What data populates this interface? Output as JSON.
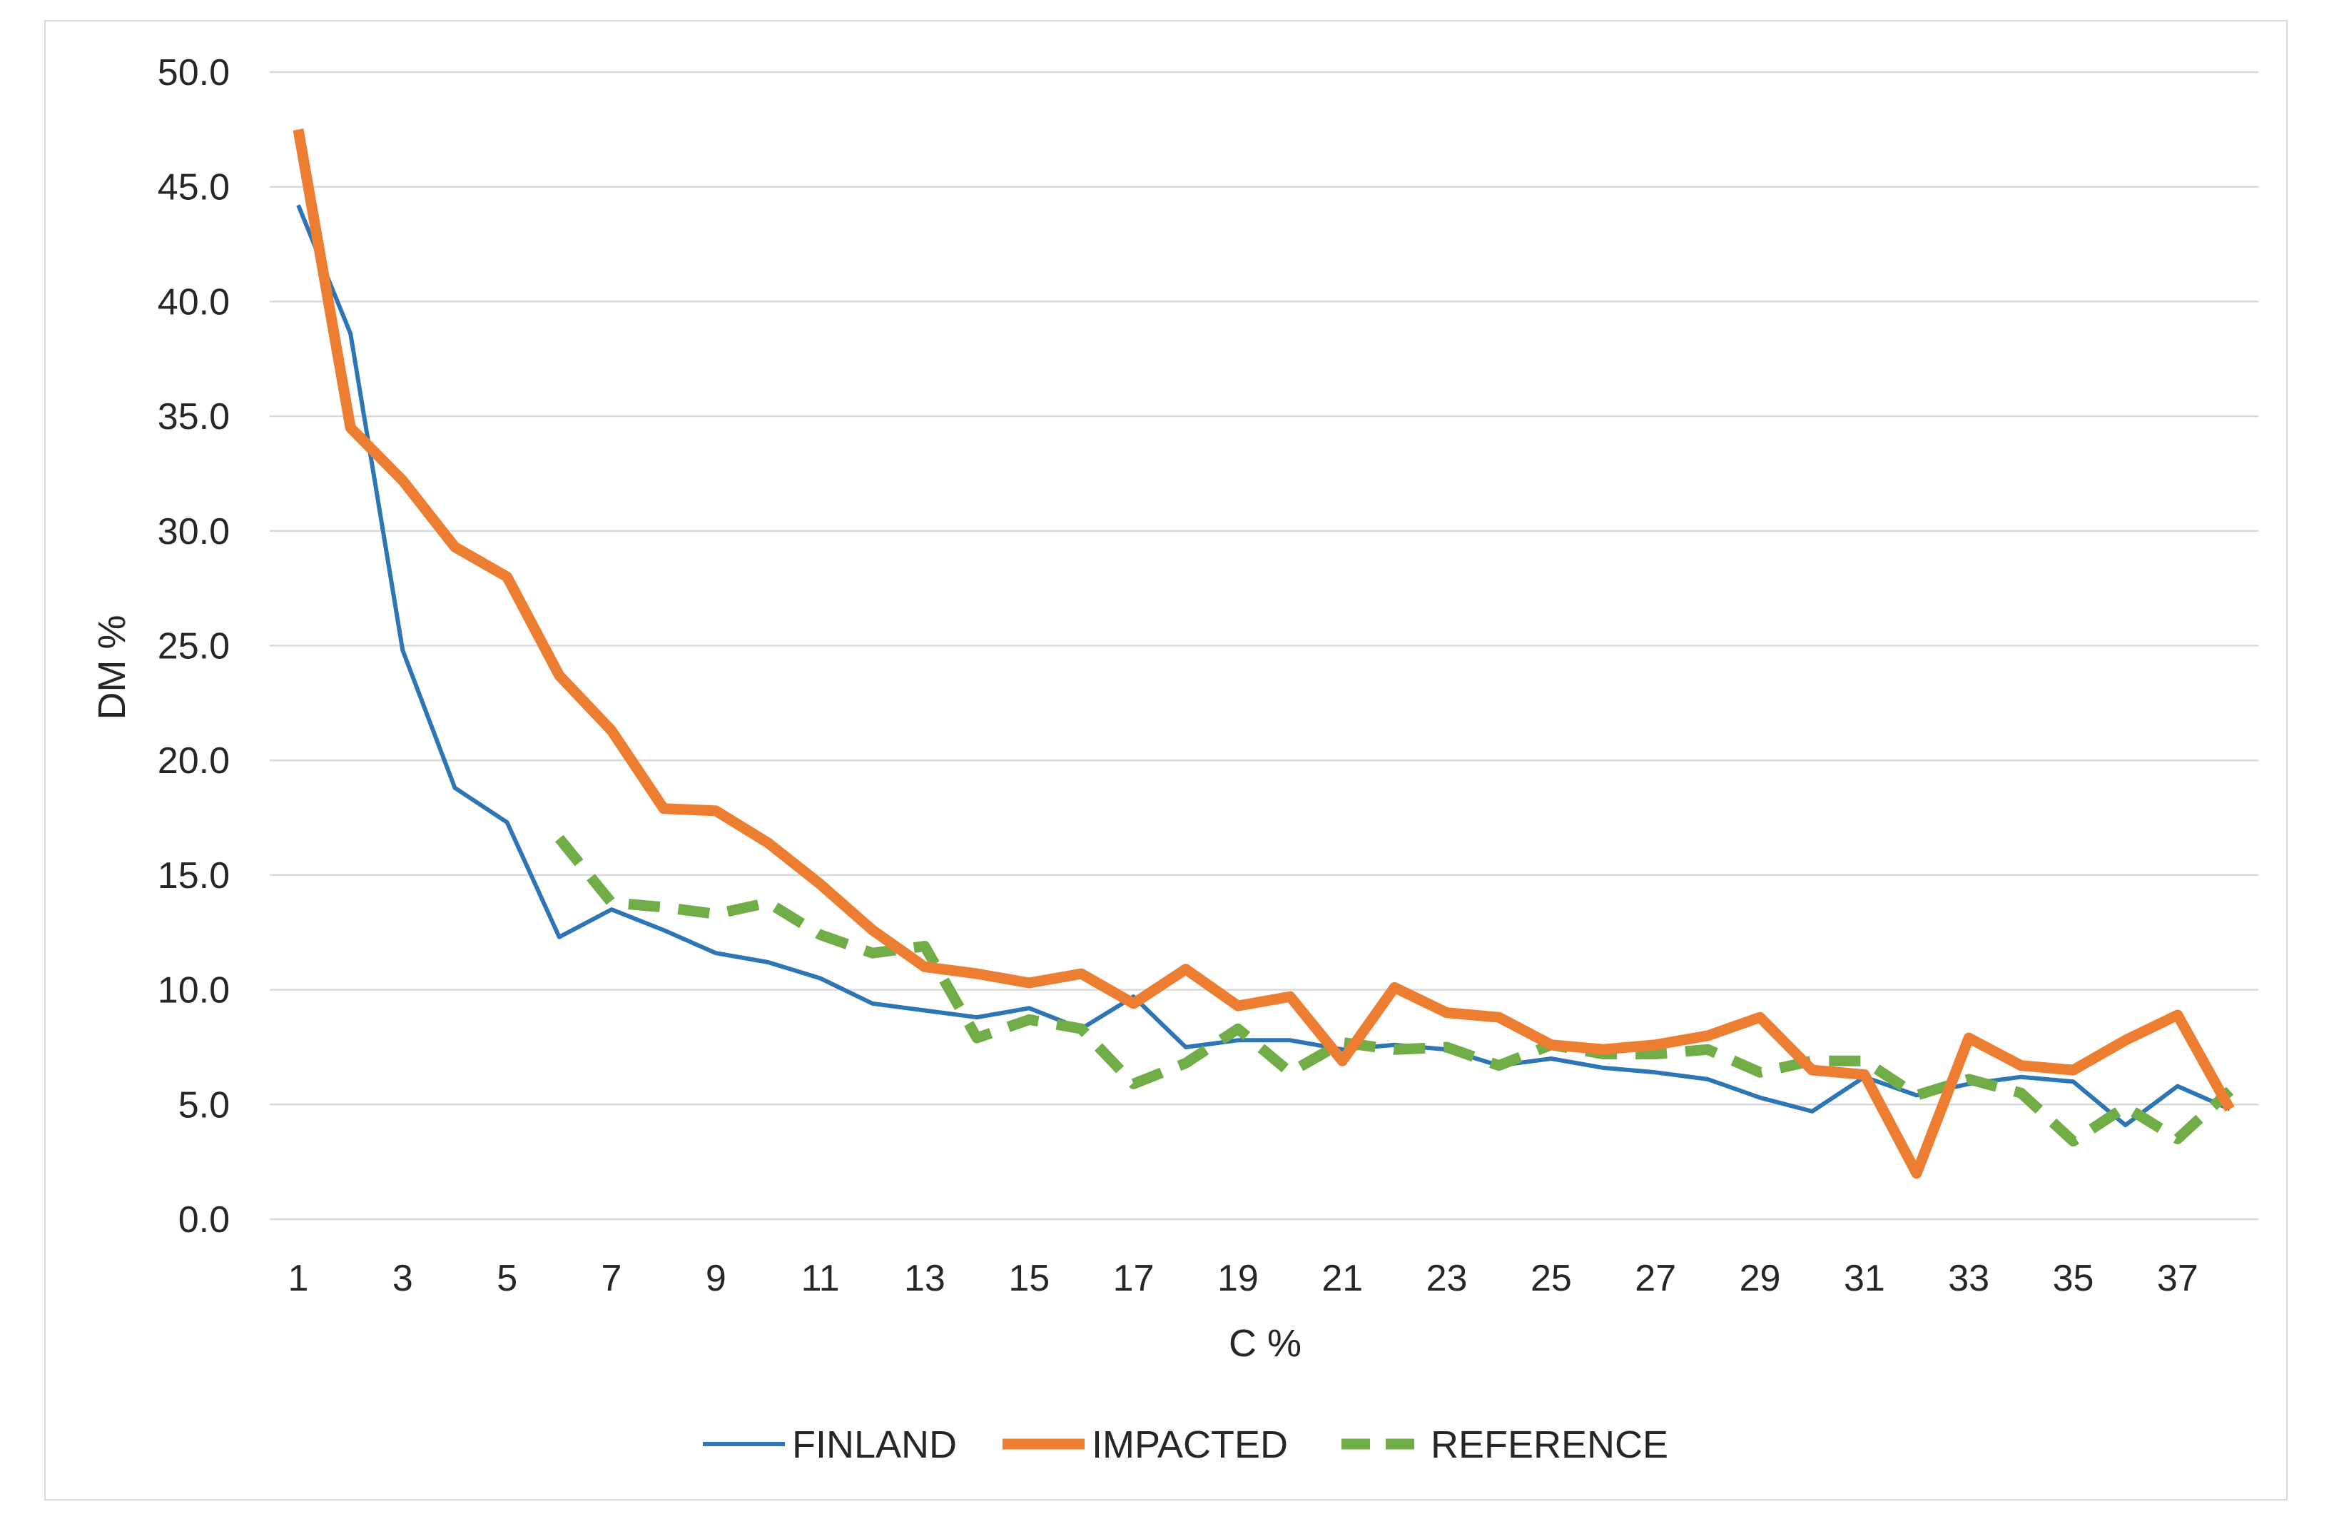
{
  "chart_data": {
    "type": "line",
    "title": "",
    "xlabel": "C %",
    "ylabel": "DM %",
    "ylim": [
      0,
      50
    ],
    "y_ticks": [
      "0.0",
      "5.0",
      "10.0",
      "15.0",
      "20.0",
      "25.0",
      "30.0",
      "35.0",
      "40.0",
      "45.0",
      "50.0"
    ],
    "x_ticks": [
      "1",
      "3",
      "5",
      "7",
      "9",
      "11",
      "13",
      "15",
      "17",
      "19",
      "21",
      "23",
      "25",
      "27",
      "29",
      "31",
      "33",
      "35",
      "37"
    ],
    "x": [
      1,
      2,
      3,
      4,
      5,
      6,
      7,
      8,
      9,
      10,
      11,
      12,
      13,
      14,
      15,
      16,
      17,
      18,
      19,
      20,
      21,
      22,
      23,
      24,
      25,
      26,
      27,
      28,
      29,
      30,
      31,
      32,
      33,
      34,
      35,
      36,
      37,
      38
    ],
    "grid": true,
    "legend_position": "bottom",
    "series": [
      {
        "name": "FINLAND",
        "color": "#2e75b6",
        "style": "solid-thin",
        "values": [
          44.2,
          38.6,
          24.8,
          18.8,
          17.3,
          12.3,
          13.5,
          12.6,
          11.6,
          11.2,
          10.5,
          9.4,
          9.1,
          8.8,
          9.2,
          8.3,
          9.7,
          7.5,
          7.8,
          7.8,
          7.4,
          7.6,
          7.4,
          6.7,
          7.0,
          6.6,
          6.4,
          6.1,
          5.3,
          4.7,
          6.2,
          5.4,
          5.9,
          6.2,
          6.0,
          4.1,
          5.8,
          4.8
        ]
      },
      {
        "name": "IMPACTED",
        "color": "#ed7d31",
        "style": "solid-thick",
        "values": [
          47.5,
          34.5,
          32.2,
          29.3,
          28.0,
          23.7,
          21.3,
          17.9,
          17.8,
          16.4,
          14.6,
          12.6,
          11.0,
          10.7,
          10.3,
          10.7,
          9.4,
          10.9,
          9.3,
          9.7,
          6.9,
          10.1,
          9.0,
          8.8,
          7.6,
          7.4,
          7.6,
          8.0,
          8.8,
          6.5,
          6.3,
          2.0,
          7.9,
          6.7,
          6.5,
          7.8,
          8.9,
          4.8
        ]
      },
      {
        "name": "REFERENCE",
        "color": "#70ad47",
        "style": "dashed",
        "values": [
          null,
          null,
          null,
          null,
          null,
          16.6,
          13.8,
          13.6,
          13.3,
          13.8,
          12.4,
          11.6,
          11.9,
          7.9,
          8.7,
          8.3,
          5.9,
          6.8,
          8.3,
          6.4,
          7.7,
          7.4,
          7.5,
          6.7,
          7.6,
          7.2,
          7.2,
          7.4,
          6.4,
          6.9,
          6.9,
          5.4,
          6.1,
          5.5,
          3.4,
          4.9,
          3.5,
          5.6
        ]
      }
    ]
  }
}
